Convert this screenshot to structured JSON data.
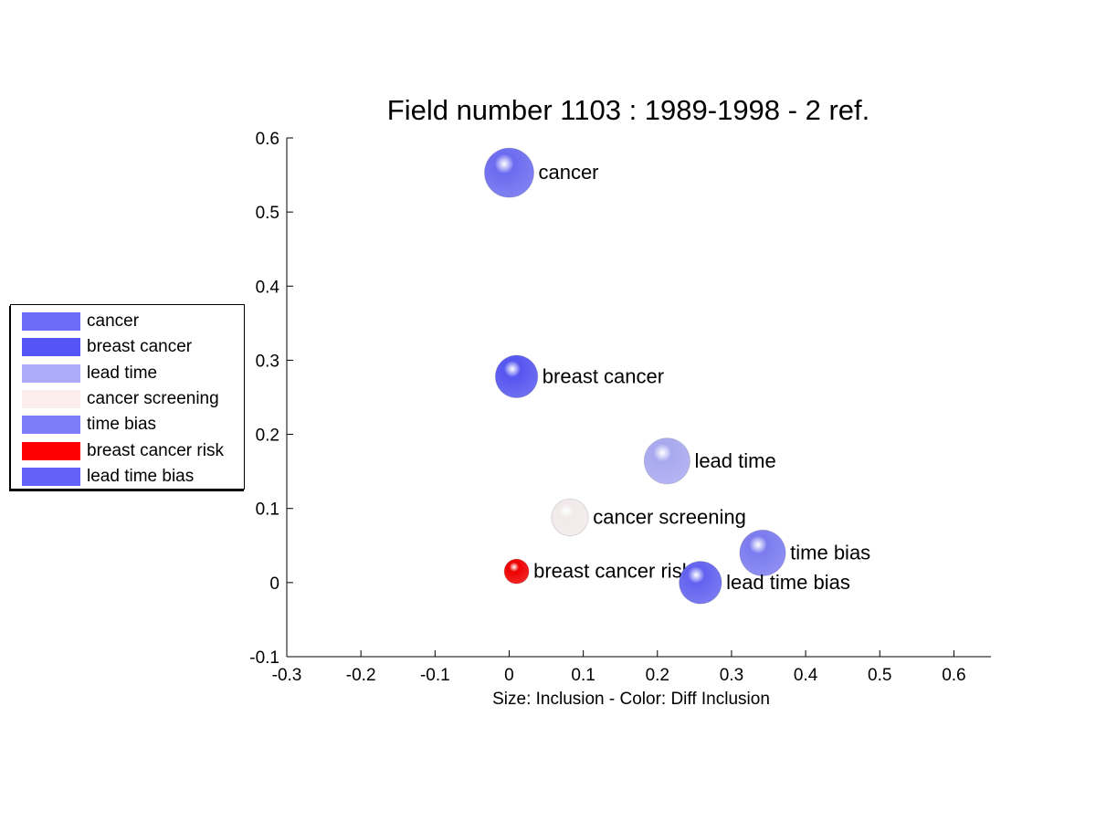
{
  "chart_data": {
    "type": "scatter",
    "title": "Field number 1103 : 1989-1998  - 2 ref.",
    "xlabel": "Size: Inclusion - Color: Diff Inclusion",
    "ylabel": "",
    "xlim": [
      -0.3,
      0.65
    ],
    "ylim": [
      -0.1,
      0.6
    ],
    "xticks": [
      "-0.3",
      "-0.2",
      "-0.1",
      "0",
      "0.1",
      "0.2",
      "0.3",
      "0.4",
      "0.5",
      "0.6"
    ],
    "yticks": [
      "-0.1",
      "0",
      "0.1",
      "0.2",
      "0.3",
      "0.4",
      "0.5",
      "0.6"
    ],
    "grid": false,
    "legend_position": "left",
    "points": [
      {
        "label": "cancer",
        "x": 0.0,
        "y": 0.553,
        "size": 1.0,
        "color": "#6b6bf0"
      },
      {
        "label": "breast cancer",
        "x": 0.01,
        "y": 0.278,
        "size": 0.86,
        "color": "#5555f0"
      },
      {
        "label": "lead time",
        "x": 0.213,
        "y": 0.164,
        "size": 0.93,
        "color": "#a8a8f0"
      },
      {
        "label": "cancer screening",
        "x": 0.082,
        "y": 0.088,
        "size": 0.75,
        "color": "#f2eaea"
      },
      {
        "label": "time bias",
        "x": 0.342,
        "y": 0.04,
        "size": 0.93,
        "color": "#7b7bf0"
      },
      {
        "label": "breast cancer risk",
        "x": 0.01,
        "y": 0.015,
        "size": 0.5,
        "color": "#ee0000"
      },
      {
        "label": "lead time bias",
        "x": 0.258,
        "y": 0.0,
        "size": 0.86,
        "color": "#6262f0"
      }
    ],
    "legend": [
      {
        "label": "cancer",
        "color": "#6b6bf7"
      },
      {
        "label": "breast cancer",
        "color": "#5555f7"
      },
      {
        "label": "lead time",
        "color": "#acacfa"
      },
      {
        "label": "cancer screening",
        "color": "#fdeeee"
      },
      {
        "label": "time bias",
        "color": "#7d7df8"
      },
      {
        "label": "breast cancer risk",
        "color": "#ff0000"
      },
      {
        "label": "lead time bias",
        "color": "#6262f7"
      }
    ]
  }
}
